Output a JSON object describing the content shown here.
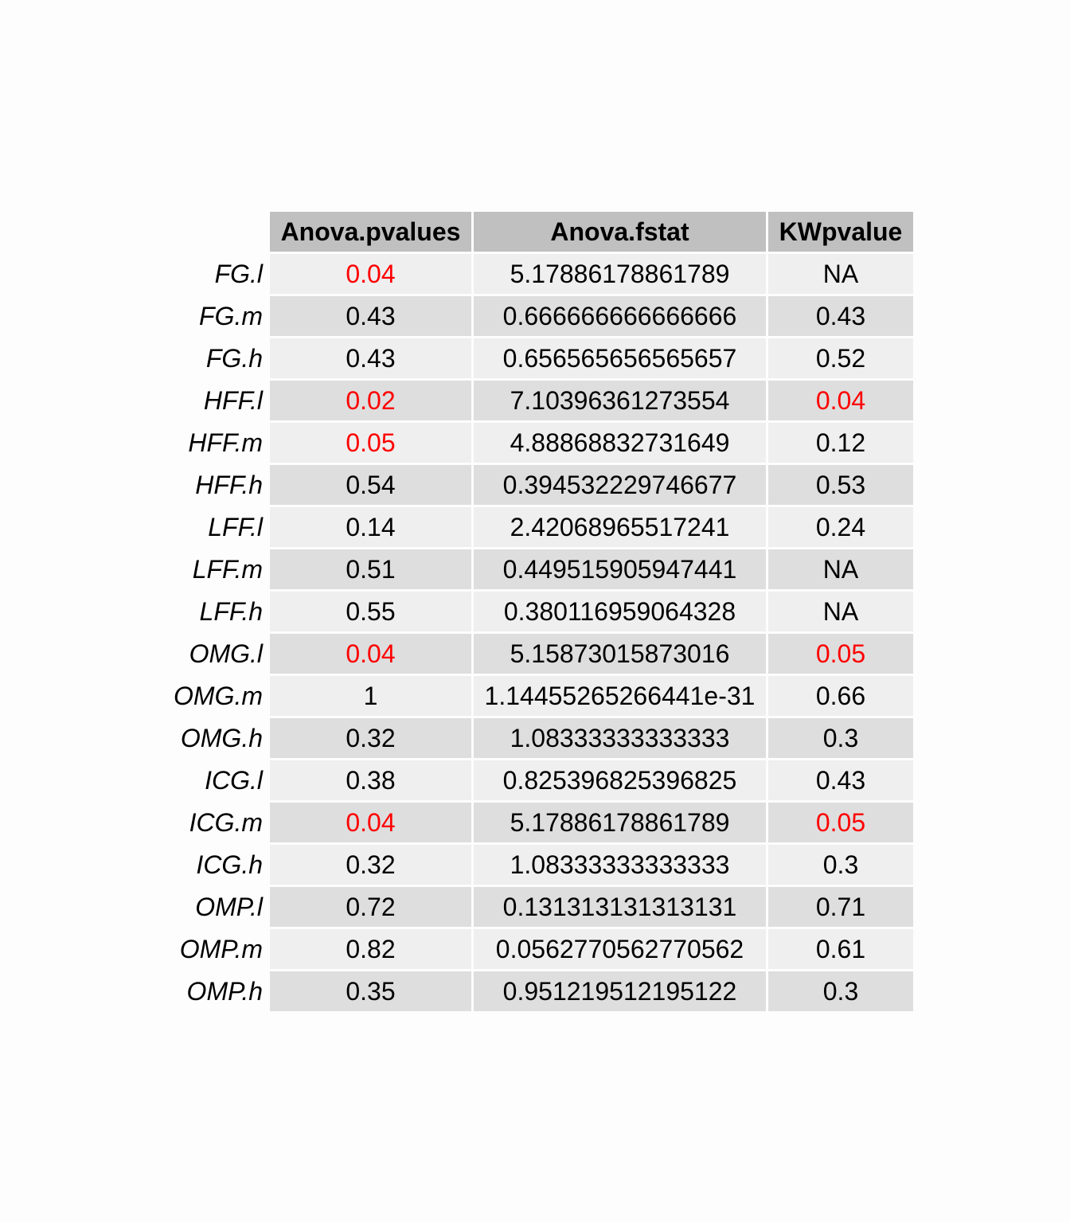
{
  "chart_data": {
    "type": "table",
    "columns": [
      "Anova.pvalues",
      "Anova.fstat",
      "KWpvalue"
    ],
    "rows": [
      {
        "label": "FG.l",
        "values": [
          "0.04",
          "5.17886178861789",
          "NA"
        ]
      },
      {
        "label": "FG.m",
        "values": [
          "0.43",
          "0.666666666666666",
          "0.43"
        ]
      },
      {
        "label": "FG.h",
        "values": [
          "0.43",
          "0.656565656565657",
          "0.52"
        ]
      },
      {
        "label": "HFF.l",
        "values": [
          "0.02",
          "7.10396361273554",
          "0.04"
        ]
      },
      {
        "label": "HFF.m",
        "values": [
          "0.05",
          "4.88868832731649",
          "0.12"
        ]
      },
      {
        "label": "HFF.h",
        "values": [
          "0.54",
          "0.394532229746677",
          "0.53"
        ]
      },
      {
        "label": "LFF.l",
        "values": [
          "0.14",
          "2.42068965517241",
          "0.24"
        ]
      },
      {
        "label": "LFF.m",
        "values": [
          "0.51",
          "0.449515905947441",
          "NA"
        ]
      },
      {
        "label": "LFF.h",
        "values": [
          "0.55",
          "0.380116959064328",
          "NA"
        ]
      },
      {
        "label": "OMG.l",
        "values": [
          "0.04",
          "5.15873015873016",
          "0.05"
        ]
      },
      {
        "label": "OMG.m",
        "values": [
          "1",
          "1.14455265266441e-31",
          "0.66"
        ]
      },
      {
        "label": "OMG.h",
        "values": [
          "0.32",
          "1.08333333333333",
          "0.3"
        ]
      },
      {
        "label": "ICG.l",
        "values": [
          "0.38",
          "0.825396825396825",
          "0.43"
        ]
      },
      {
        "label": "ICG.m",
        "values": [
          "0.04",
          "5.17886178861789",
          "0.05"
        ]
      },
      {
        "label": "ICG.h",
        "values": [
          "0.32",
          "1.08333333333333",
          "0.3"
        ]
      },
      {
        "label": "OMP.l",
        "values": [
          "0.72",
          "0.131313131313131",
          "0.71"
        ]
      },
      {
        "label": "OMP.m",
        "values": [
          "0.82",
          "0.0562770562770562",
          "0.61"
        ]
      },
      {
        "label": "OMP.h",
        "values": [
          "0.35",
          "0.951219512195122",
          "0.3"
        ]
      }
    ],
    "highlight_color": "#ff0000",
    "highlighted_cells": [
      [
        0,
        0
      ],
      [
        3,
        0
      ],
      [
        3,
        2
      ],
      [
        4,
        0
      ],
      [
        9,
        0
      ],
      [
        9,
        2
      ],
      [
        13,
        0
      ],
      [
        13,
        2
      ]
    ],
    "header_color": "#c0c0c0",
    "row_colors": [
      "#efefef",
      "#dedede"
    ]
  }
}
